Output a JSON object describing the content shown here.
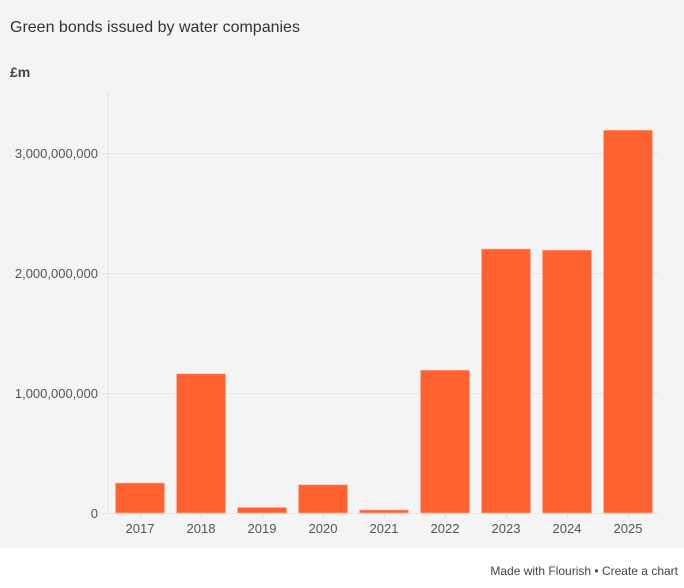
{
  "chart_data": {
    "type": "bar",
    "title": "Green bonds issued by water companies",
    "unit_label": "£m",
    "xlabel": "",
    "ylabel": "£m",
    "categories": [
      "2017",
      "2018",
      "2019",
      "2020",
      "2021",
      "2022",
      "2023",
      "2024",
      "2025"
    ],
    "values": [
      250000000,
      1160000000,
      46000000,
      235000000,
      25000000,
      1190000000,
      2200000000,
      2190000000,
      3190000000
    ],
    "ylim": [
      0,
      3500000000
    ],
    "yticks": [
      0,
      1000000000,
      2000000000,
      3000000000
    ],
    "ytick_labels": [
      "0",
      "1,000,000,000",
      "2,000,000,000",
      "3,000,000,000"
    ],
    "grid": true,
    "legend": "none",
    "bar_color": "#ff6230"
  },
  "footer": {
    "made_with": "Made with Flourish",
    "separator": " • ",
    "create_chart": "Create a chart"
  }
}
